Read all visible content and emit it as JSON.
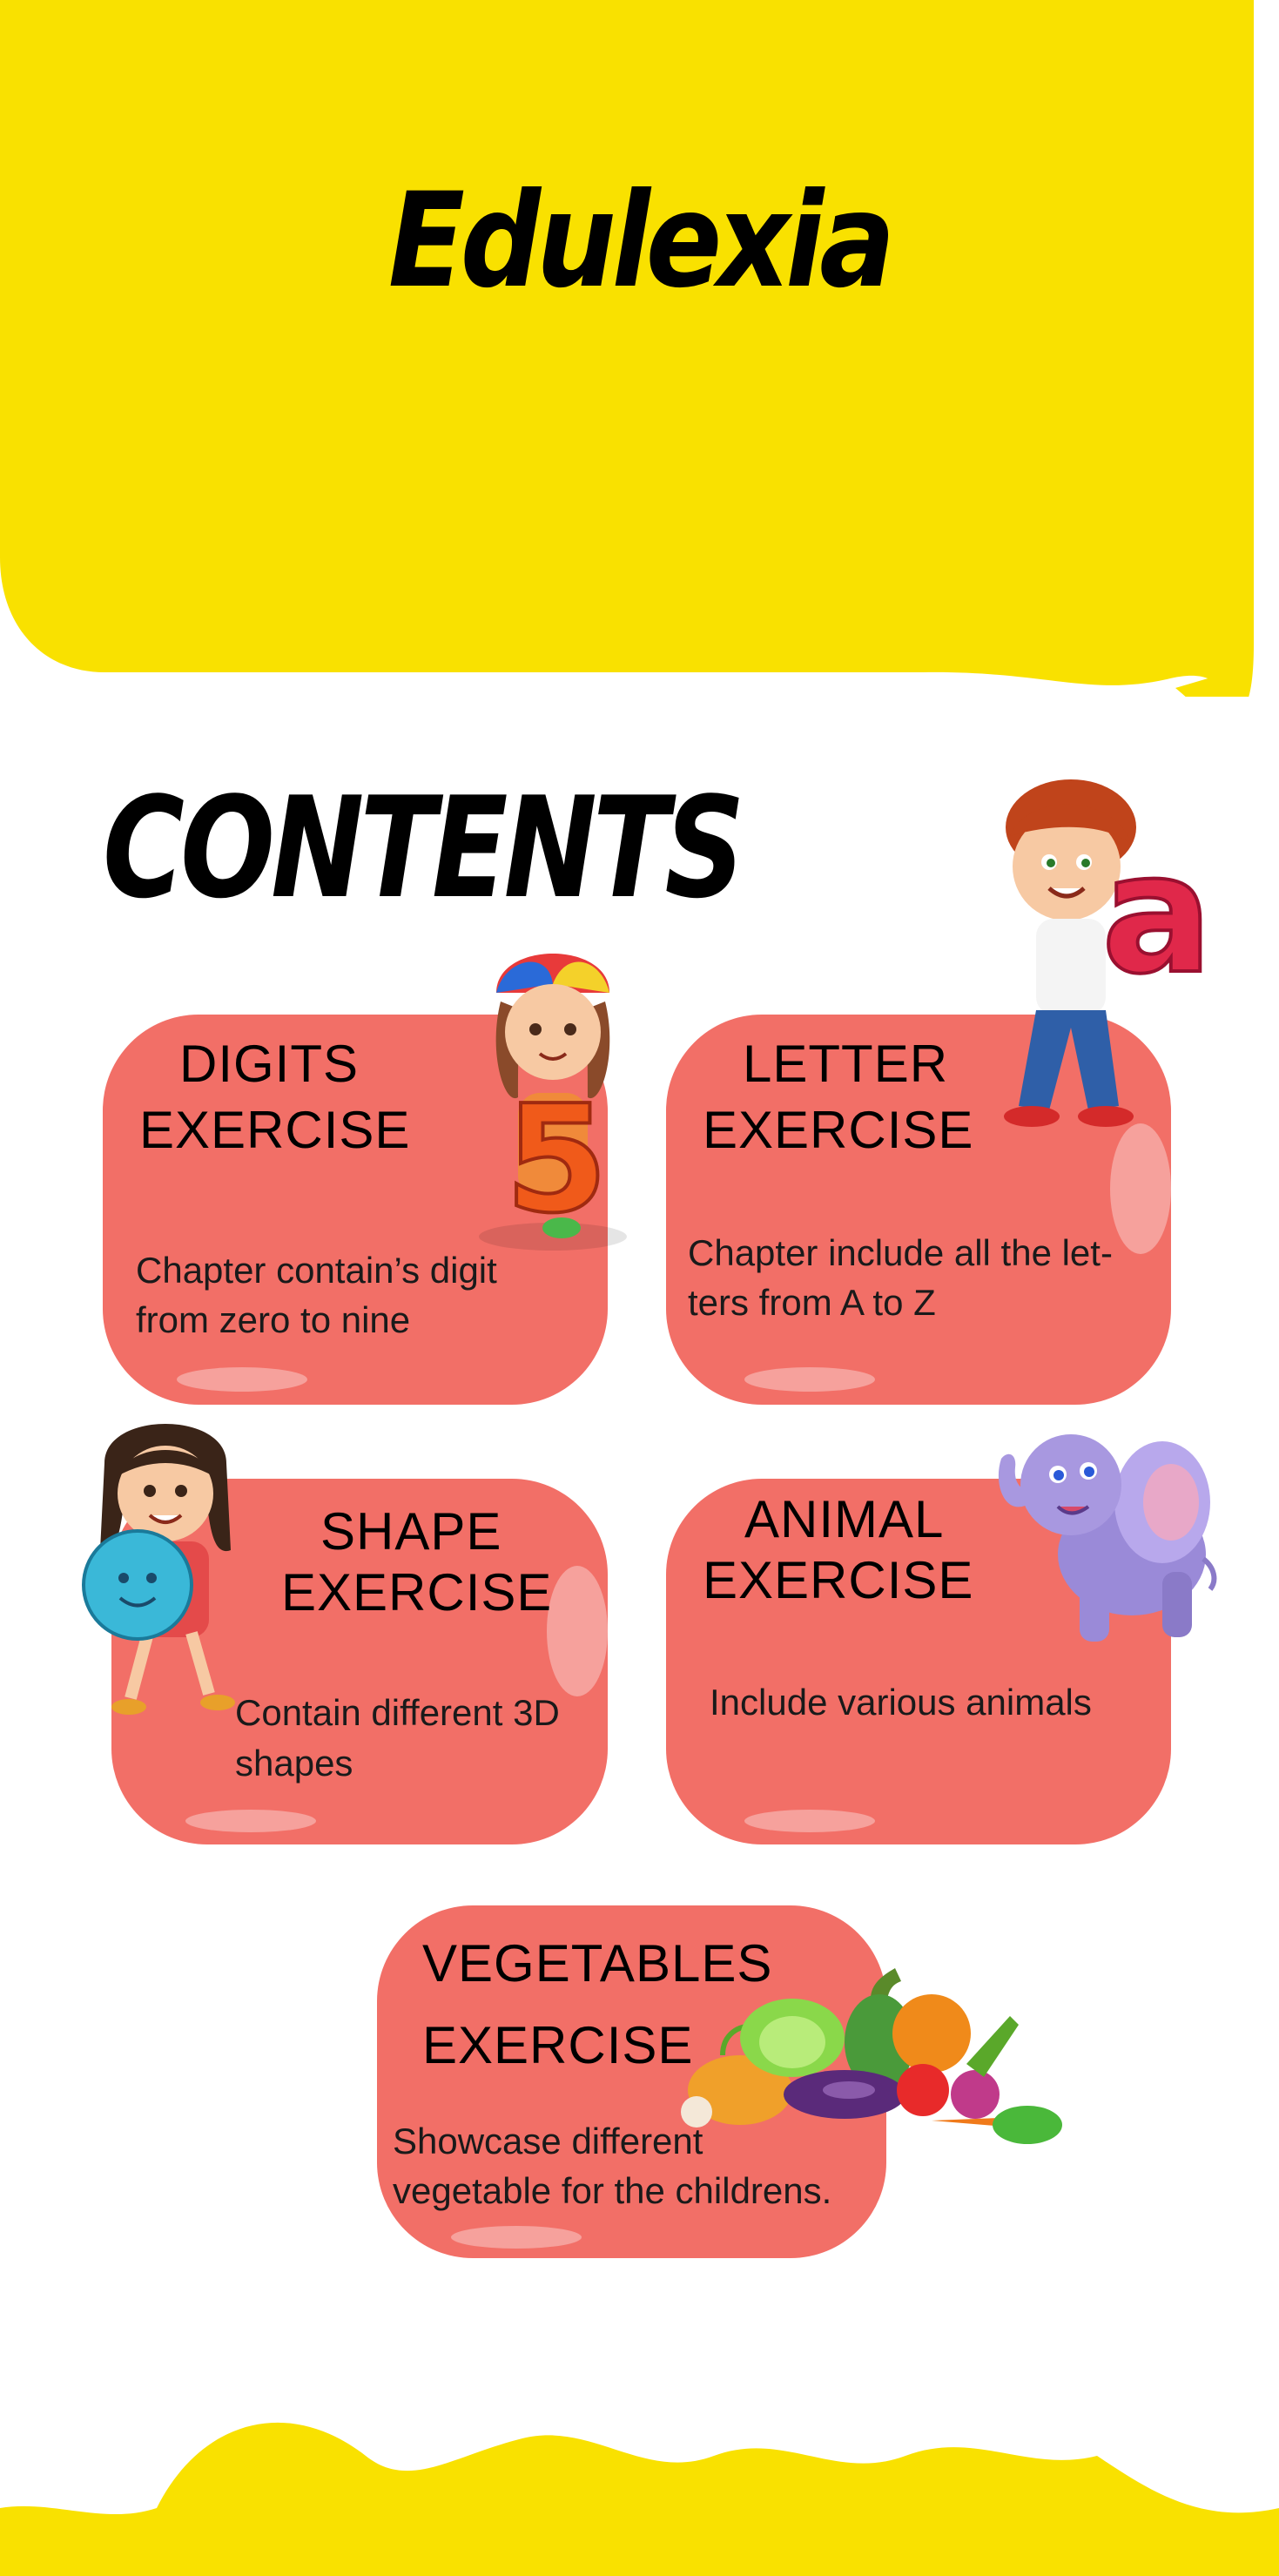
{
  "header": {
    "title": "Edulexia"
  },
  "contents": {
    "heading": "CONTENTS",
    "cards": [
      {
        "title_line1": "DIGITS",
        "title_line2": "EXERCISE",
        "desc_line1": "Chapter contain’s digit",
        "desc_line2": "from zero to nine"
      },
      {
        "title_line1": "LETTER",
        "title_line2": "EXERCISE",
        "desc_line1": "Chapter include all the let-",
        "desc_line2": "ters from A to Z"
      },
      {
        "title_line1": "SHAPE",
        "title_line2": "EXERCISE",
        "desc_line1": "Contain different 3D",
        "desc_line2": "shapes"
      },
      {
        "title_line1": "ANIMAL",
        "title_line2": "EXERCISE",
        "desc_line1": "Include various animals",
        "desc_line2": ""
      },
      {
        "title_line1": "VEGETABLES",
        "title_line2": "EXERCISE",
        "desc_line1": "Showcase different",
        "desc_line2": "vegetable for the childrens."
      }
    ]
  },
  "illustrations": {
    "digit_glyph": "5",
    "letter_glyph": "a"
  },
  "colors": {
    "header_yellow": "#f9e100",
    "card_coral": "#f26f67",
    "text_black": "#000000"
  }
}
